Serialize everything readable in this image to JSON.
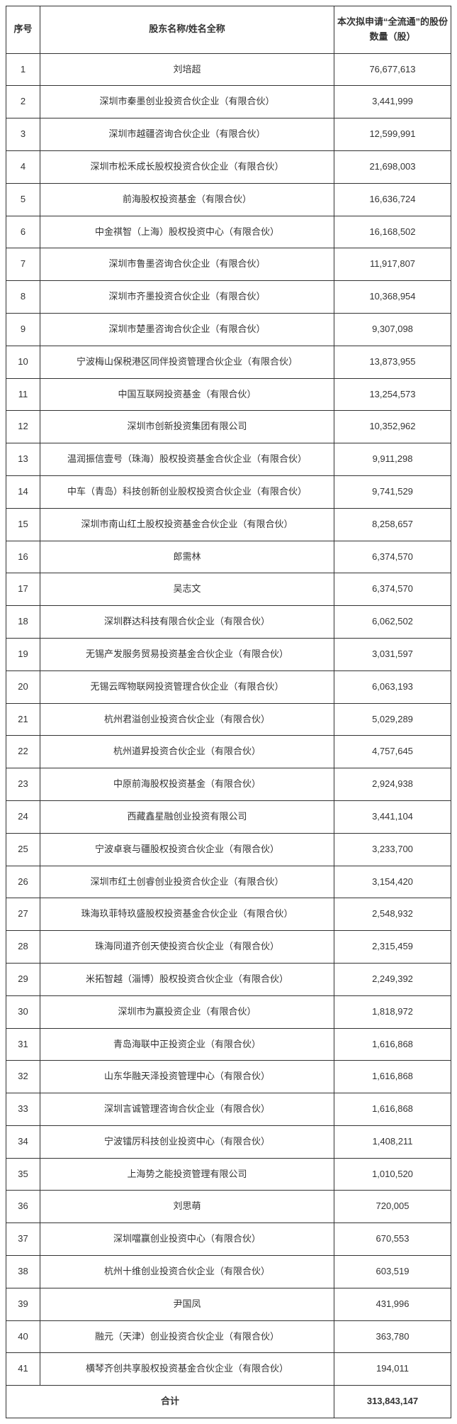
{
  "table": {
    "headers": {
      "seq": "序号",
      "name": "股东名称/姓名全称",
      "shares": "本次拟申请“全流通”的股份数量（股）"
    },
    "rows": [
      {
        "seq": "1",
        "name": "刘培超",
        "shares": "76,677,613"
      },
      {
        "seq": "2",
        "name": "深圳市秦墨创业投资合伙企业（有限合伙）",
        "shares": "3,441,999"
      },
      {
        "seq": "3",
        "name": "深圳市越疆咨询合伙企业（有限合伙）",
        "shares": "12,599,991"
      },
      {
        "seq": "4",
        "name": "深圳市松禾成长股权投资合伙企业（有限合伙）",
        "shares": "21,698,003"
      },
      {
        "seq": "5",
        "name": "前海股权投资基金（有限合伙）",
        "shares": "16,636,724"
      },
      {
        "seq": "6",
        "name": "中金祺智（上海）股权投资中心（有限合伙）",
        "shares": "16,168,502"
      },
      {
        "seq": "7",
        "name": "深圳市鲁墨咨询合伙企业（有限合伙）",
        "shares": "11,917,807"
      },
      {
        "seq": "8",
        "name": "深圳市齐墨投资合伙企业（有限合伙）",
        "shares": "10,368,954"
      },
      {
        "seq": "9",
        "name": "深圳市楚墨咨询合伙企业（有限合伙）",
        "shares": "9,307,098"
      },
      {
        "seq": "10",
        "name": "宁波梅山保税港区同伴投资管理合伙企业（有限合伙）",
        "shares": "13,873,955"
      },
      {
        "seq": "11",
        "name": "中国互联网投资基金（有限合伙）",
        "shares": "13,254,573"
      },
      {
        "seq": "12",
        "name": "深圳市创新投资集团有限公司",
        "shares": "10,352,962"
      },
      {
        "seq": "13",
        "name": "温润振信壹号（珠海）股权投资基金合伙企业（有限合伙）",
        "shares": "9,911,298"
      },
      {
        "seq": "14",
        "name": "中车（青岛）科技创新创业股权投资合伙企业（有限合伙）",
        "shares": "9,741,529"
      },
      {
        "seq": "15",
        "name": "深圳市南山红土股权投资基金合伙企业（有限合伙）",
        "shares": "8,258,657"
      },
      {
        "seq": "16",
        "name": "郎需林",
        "shares": "6,374,570"
      },
      {
        "seq": "17",
        "name": "吴志文",
        "shares": "6,374,570"
      },
      {
        "seq": "18",
        "name": "深圳群达科技有限合伙企业（有限合伙）",
        "shares": "6,062,502"
      },
      {
        "seq": "19",
        "name": "无锡产发服务贸易投资基金合伙企业（有限合伙）",
        "shares": "3,031,597"
      },
      {
        "seq": "20",
        "name": "无锡云晖物联网投资管理合伙企业（有限合伙）",
        "shares": "6,063,193"
      },
      {
        "seq": "21",
        "name": "杭州君溢创业投资合伙企业（有限合伙）",
        "shares": "5,029,289"
      },
      {
        "seq": "22",
        "name": "杭州道昇投资合伙企业（有限合伙）",
        "shares": "4,757,645"
      },
      {
        "seq": "23",
        "name": "中原前海股权投资基金（有限合伙）",
        "shares": "2,924,938"
      },
      {
        "seq": "24",
        "name": "西藏鑫星融创业投资有限公司",
        "shares": "3,441,104"
      },
      {
        "seq": "25",
        "name": "宁波卓衰与疆股权投资合伙企业（有限合伙）",
        "shares": "3,233,700"
      },
      {
        "seq": "26",
        "name": "深圳市红土创睿创业投资合伙企业（有限合伙）",
        "shares": "3,154,420"
      },
      {
        "seq": "27",
        "name": "珠海玖菲特玖盛股权投资基金合伙企业（有限合伙）",
        "shares": "2,548,932"
      },
      {
        "seq": "28",
        "name": "珠海同道齐创天使投资合伙企业（有限合伙）",
        "shares": "2,315,459"
      },
      {
        "seq": "29",
        "name": "米拓智越（淄博）股权投资合伙企业（有限合伙）",
        "shares": "2,249,392"
      },
      {
        "seq": "30",
        "name": "深圳市为赢投资企业（有限合伙）",
        "shares": "1,818,972"
      },
      {
        "seq": "31",
        "name": "青岛海联中正投资企业（有限合伙）",
        "shares": "1,616,868"
      },
      {
        "seq": "32",
        "name": "山东华融天泽投资管理中心（有限合伙）",
        "shares": "1,616,868"
      },
      {
        "seq": "33",
        "name": "深圳言诚管理咨询合伙企业（有限合伙）",
        "shares": "1,616,868"
      },
      {
        "seq": "34",
        "name": "宁波镭厉科技创业投资中心（有限合伙）",
        "shares": "1,408,211"
      },
      {
        "seq": "35",
        "name": "上海势之能投资管理有限公司",
        "shares": "1,010,520"
      },
      {
        "seq": "36",
        "name": "刘思萌",
        "shares": "720,005"
      },
      {
        "seq": "37",
        "name": "深圳噹赢创业投资中心（有限合伙）",
        "shares": "670,553"
      },
      {
        "seq": "38",
        "name": "杭州十维创业投资合伙企业（有限合伙）",
        "shares": "603,519"
      },
      {
        "seq": "39",
        "name": "尹国凤",
        "shares": "431,996"
      },
      {
        "seq": "40",
        "name": "融元（天津）创业投资合伙企业（有限合伙）",
        "shares": "363,780"
      },
      {
        "seq": "41",
        "name": "横琴齐创共享股权投资基金合伙企业（有限合伙）",
        "shares": "194,011"
      }
    ],
    "total": {
      "label": "合计",
      "value": "313,843,147"
    }
  }
}
